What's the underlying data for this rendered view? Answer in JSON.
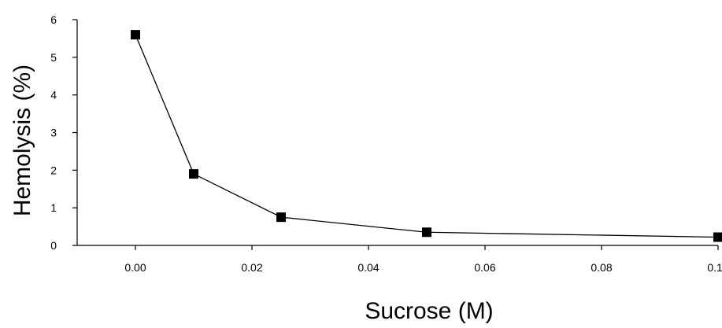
{
  "chart_data": {
    "type": "line",
    "title": "",
    "xlabel": "Sucrose (M)",
    "ylabel": "Hemolysis (%)",
    "xlim": [
      -0.01,
      0.1
    ],
    "ylim": [
      0,
      6
    ],
    "x_ticks": [
      "0.00",
      "0.02",
      "0.04",
      "0.06",
      "0.08",
      "0.10"
    ],
    "x_tick_values": [
      0.0,
      0.02,
      0.04,
      0.06,
      0.08,
      0.1
    ],
    "y_ticks": [
      "0",
      "1",
      "2",
      "3",
      "4",
      "5",
      "6"
    ],
    "y_tick_values": [
      0,
      1,
      2,
      3,
      4,
      5,
      6
    ],
    "grid": false,
    "legend": "none",
    "series": [
      {
        "marker": "square",
        "color": "#000000",
        "x": [
          0.0,
          0.01,
          0.025,
          0.05,
          0.1
        ],
        "y": [
          5.6,
          1.9,
          0.75,
          0.35,
          0.22
        ]
      }
    ]
  }
}
